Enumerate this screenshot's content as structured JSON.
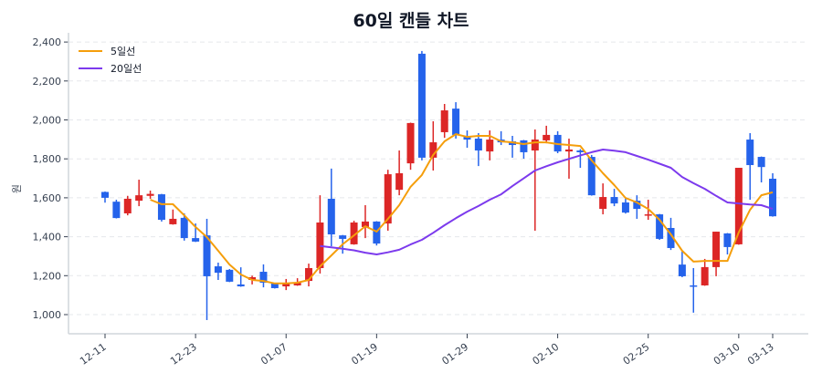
{
  "title": "60일 캔들 차트",
  "colors": {
    "up": "#dc2626",
    "down": "#2563eb",
    "ma5": "#f59e0b",
    "ma20": "#7c3aed",
    "grid": "#e5e7eb",
    "axis": "#d1d5db"
  },
  "legend": [
    {
      "label": "5일선",
      "color": "#f59e0b"
    },
    {
      "label": "20일선",
      "color": "#7c3aed"
    }
  ],
  "chart_data": {
    "type": "candlestick",
    "title": "60일 캔들 차트",
    "xlabel": "",
    "ylabel": "원",
    "ylim": [
      910,
      2460
    ],
    "yticks": [
      1000,
      1200,
      1400,
      1600,
      1800,
      2000,
      2200,
      2400
    ],
    "ytick_labels": [
      "1,000",
      "1,200",
      "1,400",
      "1,600",
      "1,800",
      "2,000",
      "2,200",
      "2,400"
    ],
    "xticks": [
      {
        "index": 0,
        "label": "12-11"
      },
      {
        "index": 8,
        "label": "12-23"
      },
      {
        "index": 16,
        "label": "01-07"
      },
      {
        "index": 24,
        "label": "01-19"
      },
      {
        "index": 32,
        "label": "01-29"
      },
      {
        "index": 40,
        "label": "02-10"
      },
      {
        "index": 48,
        "label": "02-25"
      },
      {
        "index": 56,
        "label": "03-10"
      },
      {
        "index": 59,
        "label": "03-13"
      }
    ],
    "grid": true,
    "legend_position": "upper left",
    "ohlc": [
      [
        1630,
        1632,
        1575,
        1600
      ],
      [
        1580,
        1590,
        1494,
        1496
      ],
      [
        1520,
        1610,
        1510,
        1595
      ],
      [
        1585,
        1693,
        1557,
        1613
      ],
      [
        1610,
        1637,
        1595,
        1620
      ],
      [
        1618,
        1620,
        1478,
        1487
      ],
      [
        1464,
        1540,
        1462,
        1492
      ],
      [
        1497,
        1520,
        1380,
        1393
      ],
      [
        1393,
        1468,
        1373,
        1375
      ],
      [
        1407,
        1492,
        972,
        1197
      ],
      [
        1248,
        1267,
        1178,
        1215
      ],
      [
        1230,
        1234,
        1167,
        1169
      ],
      [
        1155,
        1243,
        1143,
        1145
      ],
      [
        1178,
        1200,
        1155,
        1192
      ],
      [
        1220,
        1258,
        1140,
        1164
      ],
      [
        1160,
        1162,
        1134,
        1136
      ],
      [
        1145,
        1183,
        1126,
        1160
      ],
      [
        1150,
        1187,
        1148,
        1164
      ],
      [
        1173,
        1262,
        1145,
        1239
      ],
      [
        1239,
        1613,
        1211,
        1473
      ],
      [
        1595,
        1750,
        1351,
        1412
      ],
      [
        1407,
        1409,
        1313,
        1389
      ],
      [
        1361,
        1482,
        1359,
        1473
      ],
      [
        1450,
        1562,
        1393,
        1478
      ],
      [
        1478,
        1480,
        1355,
        1365
      ],
      [
        1468,
        1744,
        1431,
        1721
      ],
      [
        1641,
        1843,
        1613,
        1726
      ],
      [
        1777,
        1986,
        1744,
        1984
      ],
      [
        2340,
        2354,
        1792,
        1806
      ],
      [
        1806,
        1993,
        1740,
        1885
      ],
      [
        1937,
        2082,
        1908,
        2049
      ],
      [
        2058,
        2091,
        1904,
        1923
      ],
      [
        1918,
        1946,
        1857,
        1899
      ],
      [
        1904,
        1932,
        1763,
        1843
      ],
      [
        1838,
        1946,
        1792,
        1899
      ],
      [
        1899,
        1942,
        1871,
        1885
      ],
      [
        1890,
        1918,
        1806,
        1871
      ],
      [
        1895,
        1897,
        1801,
        1834
      ],
      [
        1843,
        1951,
        1431,
        1899
      ],
      [
        1895,
        1970,
        1880,
        1923
      ],
      [
        1923,
        1942,
        1829,
        1838
      ],
      [
        1838,
        1904,
        1698,
        1848
      ],
      [
        1843,
        1850,
        1754,
        1834
      ],
      [
        1810,
        1820,
        1611,
        1613
      ],
      [
        1543,
        1674,
        1515,
        1604
      ],
      [
        1604,
        1646,
        1557,
        1571
      ],
      [
        1576,
        1600,
        1519,
        1524
      ],
      [
        1585,
        1613,
        1492,
        1543
      ],
      [
        1510,
        1590,
        1487,
        1515
      ],
      [
        1515,
        1517,
        1384,
        1389
      ],
      [
        1445,
        1497,
        1332,
        1342
      ],
      [
        1257,
        1323,
        1192,
        1197
      ],
      [
        1150,
        1239,
        1010,
        1145
      ],
      [
        1150,
        1286,
        1148,
        1244
      ],
      [
        1244,
        1426,
        1197,
        1426
      ],
      [
        1417,
        1419,
        1309,
        1347
      ],
      [
        1361,
        1754,
        1359,
        1754
      ],
      [
        1899,
        1932,
        1590,
        1768
      ],
      [
        1810,
        1812,
        1679,
        1758
      ],
      [
        1698,
        1726,
        1503,
        1505
      ]
    ],
    "series": [
      {
        "name": "5일선",
        "start_index": 4,
        "values": [
          1590,
          1567,
          1567,
          1510,
          1450,
          1398,
          1328,
          1257,
          1206,
          1178,
          1173,
          1160,
          1160,
          1164,
          1178,
          1248,
          1304,
          1361,
          1407,
          1454,
          1426,
          1492,
          1562,
          1656,
          1717,
          1820,
          1890,
          1927,
          1913,
          1918,
          1918,
          1890,
          1885,
          1876,
          1885,
          1885,
          1876,
          1871,
          1866,
          1792,
          1726,
          1665,
          1599,
          1576,
          1543,
          1487,
          1412,
          1328,
          1272,
          1276,
          1276,
          1276,
          1422,
          1538,
          1613,
          1628
        ]
      },
      {
        "name": "20일선",
        "start_index": 19,
        "values": [
          1352,
          1345,
          1338,
          1330,
          1318,
          1309,
          1320,
          1333,
          1360,
          1384,
          1420,
          1459,
          1495,
          1529,
          1558,
          1590,
          1618,
          1660,
          1700,
          1740,
          1762,
          1782,
          1800,
          1818,
          1834,
          1848,
          1842,
          1834,
          1815,
          1796,
          1775,
          1754,
          1707,
          1675,
          1646,
          1610,
          1576,
          1571,
          1566,
          1562,
          1543
        ]
      }
    ]
  }
}
